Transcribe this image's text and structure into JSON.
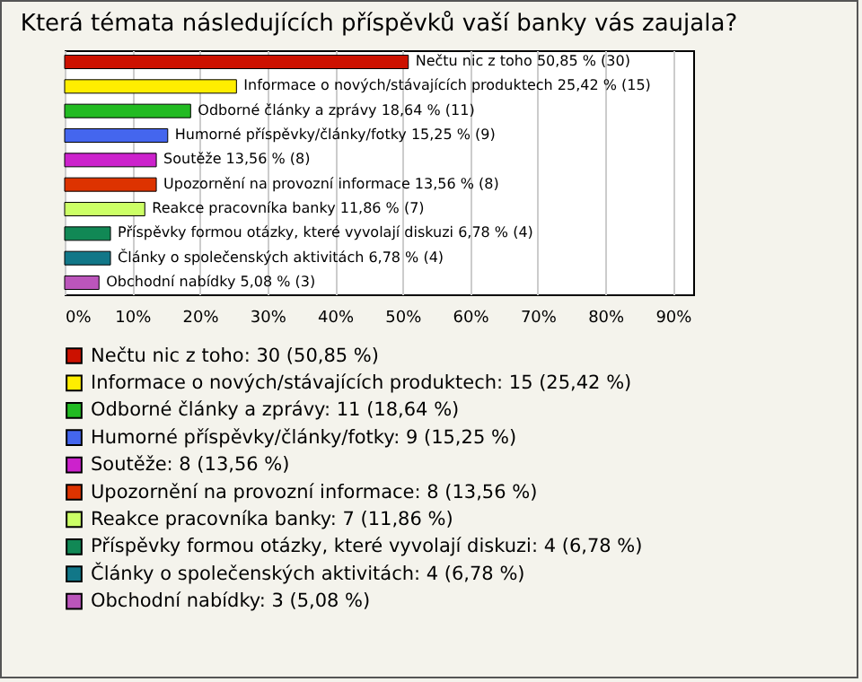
{
  "chart_data": {
    "type": "bar",
    "title": "Která témata následujících příspěvků vaší banky vás zaujala?",
    "orientation": "horizontal",
    "grid": "x",
    "legend": "bottom",
    "tick_labels": "x",
    "categories": [
      null,
      null,
      null,
      null,
      null,
      null,
      null,
      null,
      null,
      null
    ],
    "xlim": [
      0,
      93
    ],
    "xticks": [
      {
        "value": 0,
        "label": "0%"
      },
      {
        "value": 10,
        "label": "10%"
      },
      {
        "value": 20,
        "label": "20%"
      },
      {
        "value": 30,
        "label": "30%"
      },
      {
        "value": 40,
        "label": "40%"
      },
      {
        "value": 50,
        "label": "50%"
      },
      {
        "value": 60,
        "label": "60%"
      },
      {
        "value": 70,
        "label": "70%"
      },
      {
        "value": 80,
        "label": "80%"
      },
      {
        "value": 90,
        "label": "90%"
      }
    ],
    "series": [
      {
        "name": "Nečtu nic z toho: 30 (50,85 %)",
        "color": "#cc1100",
        "values": [
          50.85,
          null,
          null,
          null,
          null,
          null,
          null,
          null,
          null,
          null
        ],
        "value_labels": [
          "Nečtu nic z toho 50,85 % (30)",
          null,
          null,
          null,
          null,
          null,
          null,
          null,
          null,
          null
        ]
      },
      {
        "name": "Informace o nových/stávajících produktech: 15 (25,42 %)",
        "color": "#ffee00",
        "values": [
          null,
          25.42,
          null,
          null,
          null,
          null,
          null,
          null,
          null,
          null
        ],
        "value_labels": [
          null,
          "Informace o nových/stávajících produktech 25,42 % (15)",
          null,
          null,
          null,
          null,
          null,
          null,
          null,
          null
        ]
      },
      {
        "name": "Odborné články a zprávy: 11 (18,64 %)",
        "color": "#22bb22",
        "values": [
          null,
          null,
          18.64,
          null,
          null,
          null,
          null,
          null,
          null,
          null
        ],
        "value_labels": [
          null,
          null,
          "Odborné články a zprávy 18,64 % (11)",
          null,
          null,
          null,
          null,
          null,
          null,
          null
        ]
      },
      {
        "name": "Humorné příspěvky/články/fotky: 9 (15,25 %)",
        "color": "#4466ee",
        "values": [
          null,
          null,
          null,
          15.25,
          null,
          null,
          null,
          null,
          null,
          null
        ],
        "value_labels": [
          null,
          null,
          null,
          "Humorné příspěvky/články/fotky 15,25 % (9)",
          null,
          null,
          null,
          null,
          null,
          null
        ]
      },
      {
        "name": "Soutěže: 8 (13,56 %)",
        "color": "#cc22cc",
        "values": [
          null,
          null,
          null,
          null,
          13.56,
          null,
          null,
          null,
          null,
          null
        ],
        "value_labels": [
          null,
          null,
          null,
          null,
          "Soutěže 13,56 % (8)",
          null,
          null,
          null,
          null,
          null
        ]
      },
      {
        "name": "Upozornění na provozní informace: 8 (13,56 %)",
        "color": "#dd3300",
        "values": [
          null,
          null,
          null,
          null,
          null,
          13.56,
          null,
          null,
          null,
          null
        ],
        "value_labels": [
          null,
          null,
          null,
          null,
          null,
          "Upozornění na provozní informace 13,56 % (8)",
          null,
          null,
          null,
          null
        ]
      },
      {
        "name": "Reakce pracovníka banky: 7 (11,86 %)",
        "color": "#ccff66",
        "values": [
          null,
          null,
          null,
          null,
          null,
          null,
          11.86,
          null,
          null,
          null
        ],
        "value_labels": [
          null,
          null,
          null,
          null,
          null,
          null,
          "Reakce pracovníka banky 11,86 % (7)",
          null,
          null,
          null
        ]
      },
      {
        "name": "Příspěvky formou otázky, které vyvolají diskuzi: 4 (6,78 %)",
        "color": "#118855",
        "values": [
          null,
          null,
          null,
          null,
          null,
          null,
          null,
          6.78,
          null,
          null
        ],
        "value_labels": [
          null,
          null,
          null,
          null,
          null,
          null,
          null,
          "Příspěvky formou otázky, které vyvolají diskuzi 6,78 % (4)",
          null,
          null
        ]
      },
      {
        "name": "Články o společenských aktivitách: 4 (6,78 %)",
        "color": "#117788",
        "values": [
          null,
          null,
          null,
          null,
          null,
          null,
          null,
          null,
          6.78,
          null
        ],
        "value_labels": [
          null,
          null,
          null,
          null,
          null,
          null,
          null,
          null,
          "Články o společenských aktivitách 6,78 % (4)",
          null
        ]
      },
      {
        "name": "Obchodní nabídky: 3 (5,08 %)",
        "color": "#bb55bb",
        "values": [
          null,
          null,
          null,
          null,
          null,
          null,
          null,
          null,
          null,
          5.08
        ],
        "value_labels": [
          null,
          null,
          null,
          null,
          null,
          null,
          null,
          null,
          null,
          "Obchodní nabídky 5,08 % (3)"
        ]
      }
    ]
  }
}
